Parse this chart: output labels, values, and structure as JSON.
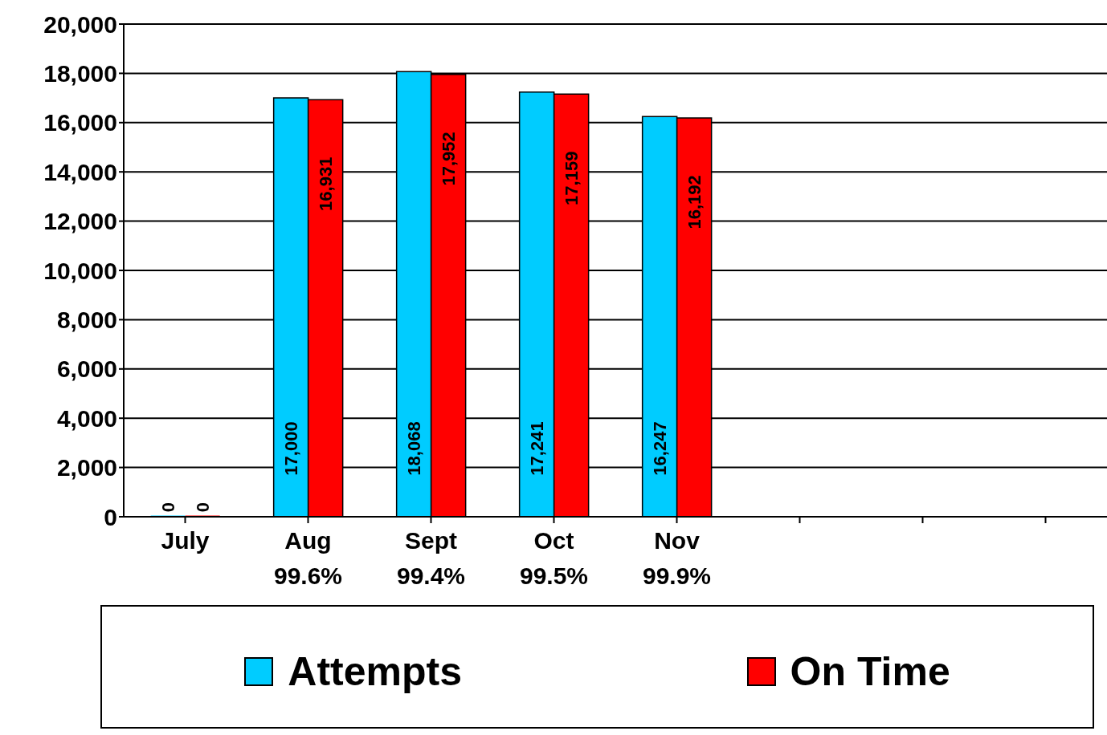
{
  "chart_data": {
    "type": "bar",
    "categories": [
      "July",
      "Aug\n99.6%",
      "Sept\n99.4%",
      "Oct\n99.5%",
      "Nov\n99.9%",
      null,
      null,
      null
    ],
    "series": [
      {
        "name": "Attempts",
        "color": "#00ccff",
        "values": [
          0,
          17000,
          18068,
          17241,
          16247,
          null,
          null,
          null
        ],
        "value_labels": [
          "0",
          "17,000",
          "18,068",
          "17,241",
          "16,247",
          null,
          null,
          null
        ]
      },
      {
        "name": "On Time",
        "color": "#ff0000",
        "values": [
          0,
          16931,
          17952,
          17159,
          16192,
          null,
          null,
          null
        ],
        "value_labels": [
          "0",
          "16,931",
          "17,952",
          "17,159",
          "16,192",
          null,
          null,
          null
        ]
      }
    ],
    "ylim": [
      0,
      20000
    ],
    "yticks": [
      {
        "value": 0,
        "label": "0"
      },
      {
        "value": 2000,
        "label": "2,000"
      },
      {
        "value": 4000,
        "label": "4,000"
      },
      {
        "value": 6000,
        "label": "6,000"
      },
      {
        "value": 8000,
        "label": "8,000"
      },
      {
        "value": 10000,
        "label": "10,000"
      },
      {
        "value": 12000,
        "label": "12,000"
      },
      {
        "value": 14000,
        "label": "14,000"
      },
      {
        "value": 16000,
        "label": "16,000"
      },
      {
        "value": 18000,
        "label": "18,000"
      },
      {
        "value": 20000,
        "label": "20,000"
      }
    ],
    "grid": "y",
    "legend": "bottom"
  }
}
